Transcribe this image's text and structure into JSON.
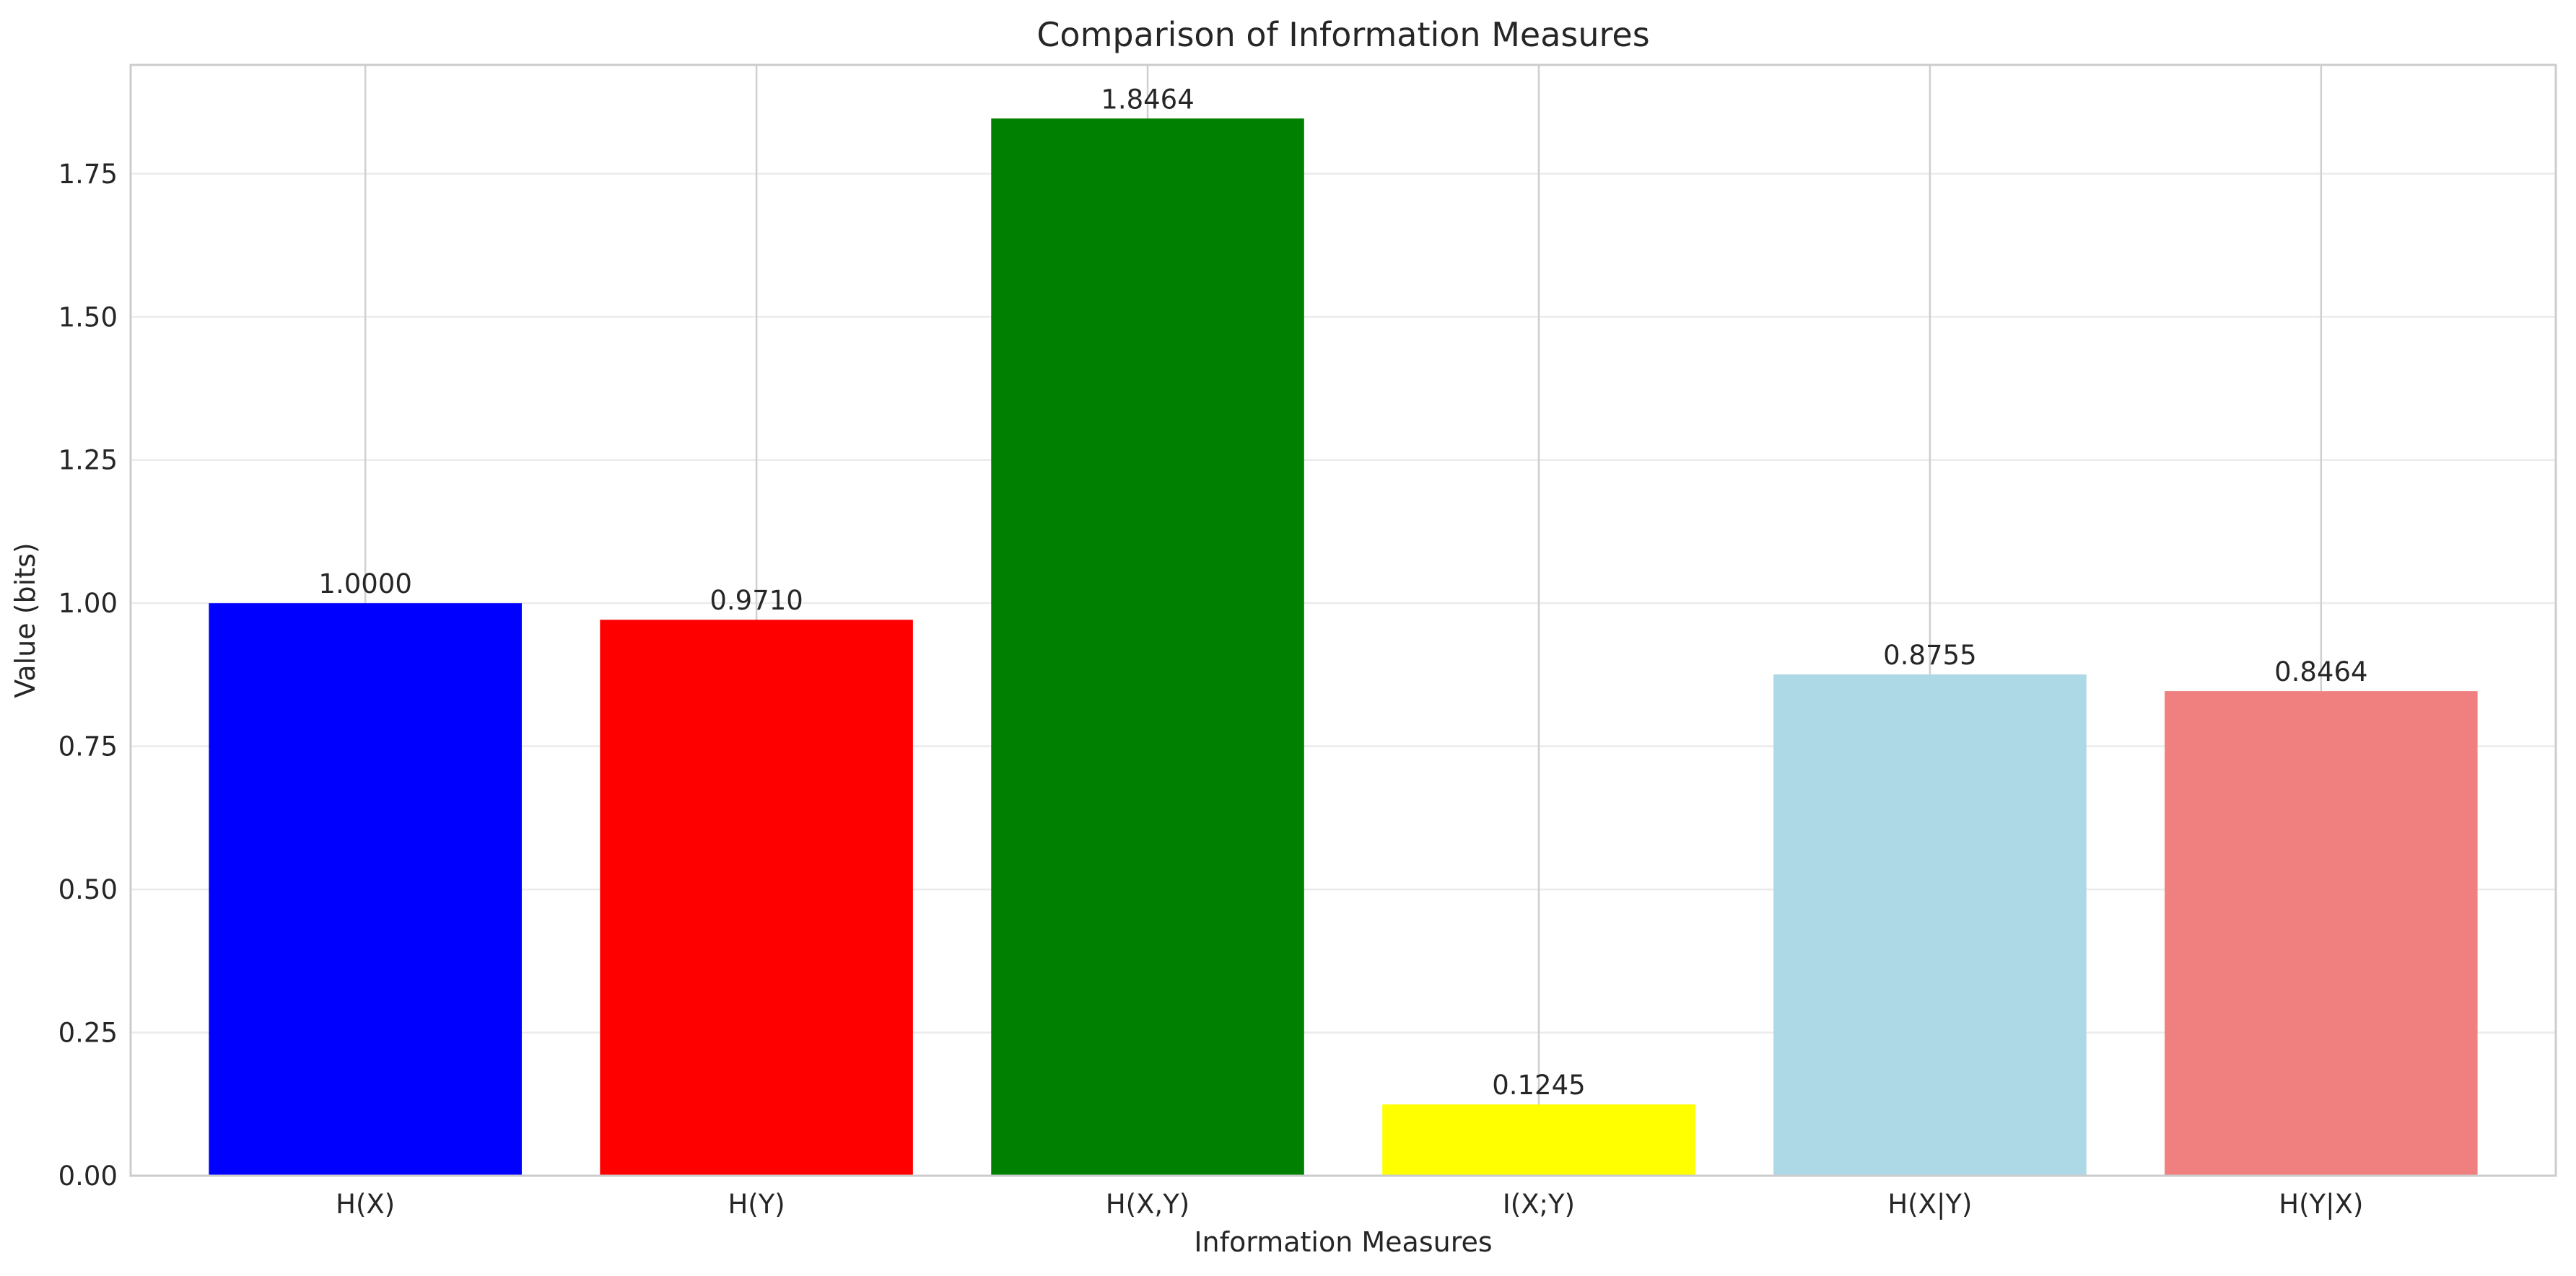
{
  "chart_data": {
    "type": "bar",
    "title": "Comparison of Information Measures",
    "xlabel": "Information Measures",
    "ylabel": "Value (bits)",
    "categories": [
      "H(X)",
      "H(Y)",
      "H(X,Y)",
      "I(X;Y)",
      "H(X|Y)",
      "H(Y|X)"
    ],
    "values": [
      1.0,
      0.971,
      1.8464,
      0.1245,
      0.8755,
      0.8464
    ],
    "value_labels": [
      "1.0000",
      "0.9710",
      "1.8464",
      "0.1245",
      "0.8755",
      "0.8464"
    ],
    "colors": [
      "#0000ff",
      "#ff0000",
      "#008000",
      "#ffff00",
      "#add8e6",
      "#f08080"
    ],
    "ylim": [
      0,
      1.94
    ],
    "yticks": [
      0.0,
      0.25,
      0.5,
      0.75,
      1.0,
      1.25,
      1.5,
      1.75
    ],
    "ytick_labels": [
      "0.00",
      "0.25",
      "0.50",
      "0.75",
      "1.00",
      "1.25",
      "1.50",
      "1.75"
    ],
    "grid": true,
    "legend": "none"
  }
}
